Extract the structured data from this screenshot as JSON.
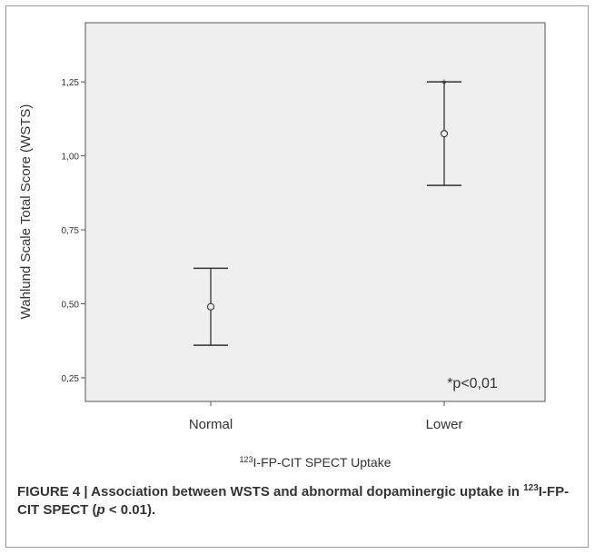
{
  "chart_data": {
    "type": "errorbar",
    "categories": [
      "Normal",
      "Lower"
    ],
    "series": [
      {
        "means": [
          0.49,
          1.075
        ],
        "lower": [
          0.36,
          0.9
        ],
        "upper": [
          0.62,
          1.25
        ]
      }
    ],
    "ylim": [
      0.17,
      1.45
    ],
    "yticks": [
      "0,25",
      "0,50",
      "0,75",
      "1,00",
      "1,25"
    ],
    "ytick_values": [
      0.25,
      0.5,
      0.75,
      1.0,
      1.25
    ],
    "ylabel": "Wahlund Scale Total Score (WSTS)",
    "xlabel_sup": "123",
    "xlabel_rest": "I-FP-CIT SPECT Uptake",
    "annotations": {
      "star": "*",
      "pnote": "*p<0,01"
    },
    "grid": false,
    "colors": {
      "plot_background": "#efefef",
      "axis": "#555555",
      "marks": "#333333"
    }
  },
  "caption": {
    "lead": "FIGURE 4 | Association between WSTS and abnormal dopaminergic uptake in ",
    "sup": "123",
    "tail_a": "I-FP-CIT SPECT (",
    "p_symbol": "p",
    "tail_b": " < 0.01)."
  }
}
